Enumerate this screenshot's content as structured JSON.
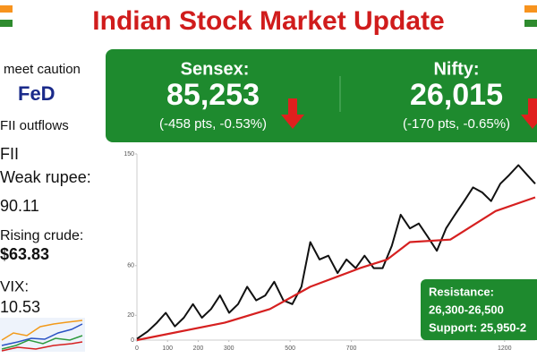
{
  "header": {
    "title": "Indian Stock Market Update"
  },
  "sidebar": {
    "items": [
      "meet caution",
      "FeD",
      "FII outflows",
      "FII",
      "Weak rupee:",
      "90.11",
      "Rising crude:",
      "$63.83",
      "VIX:",
      "10.53"
    ]
  },
  "indices": [
    {
      "name": "Sensex:",
      "value": "85,253",
      "change": "(-458 pts, -0.53%)"
    },
    {
      "name": "Nifty:",
      "value": "26,015",
      "change": "(-170 pts, -0.65%)"
    }
  ],
  "levels": {
    "resistance_label": "Resistance:",
    "resistance": "26,300-26,500",
    "support": "Support: 25,950-2"
  },
  "chart_data": {
    "type": "line",
    "xlim": [
      0,
      1300
    ],
    "xticks": [
      0,
      100,
      200,
      300,
      500,
      700,
      1200
    ],
    "ylim": [
      0,
      150
    ],
    "yticks": [
      0,
      20,
      60,
      150
    ],
    "grid": false,
    "series": [
      {
        "color": "#111111",
        "x": [
          0,
          35,
          65,
          94,
          124,
          153,
          183,
          212,
          242,
          271,
          301,
          330,
          360,
          389,
          419,
          448,
          478,
          507,
          537,
          566,
          596,
          625,
          655,
          684,
          714,
          743,
          773,
          802,
          832,
          861,
          891,
          920,
          950,
          979,
          1009,
          1038,
          1068,
          1097,
          1127,
          1156,
          1186,
          1215,
          1245,
          1274,
          1300
        ],
        "values": [
          1,
          7,
          14,
          22,
          11,
          18,
          29,
          18,
          25,
          36,
          22,
          29,
          43,
          32,
          36,
          47,
          32,
          29,
          43,
          79,
          65,
          68,
          54,
          65,
          58,
          68,
          58,
          58,
          76,
          101,
          90,
          94,
          83,
          72,
          90,
          101,
          112,
          123,
          119,
          112,
          126,
          133,
          141,
          133,
          126
        ]
      },
      {
        "color": "#d62020",
        "x": [
          0,
          286,
          434,
          566,
          728,
          817,
          891,
          1023,
          1171,
          1300
        ],
        "values": [
          0,
          14,
          25,
          43,
          58,
          65,
          79,
          81,
          104,
          115
        ]
      }
    ]
  }
}
